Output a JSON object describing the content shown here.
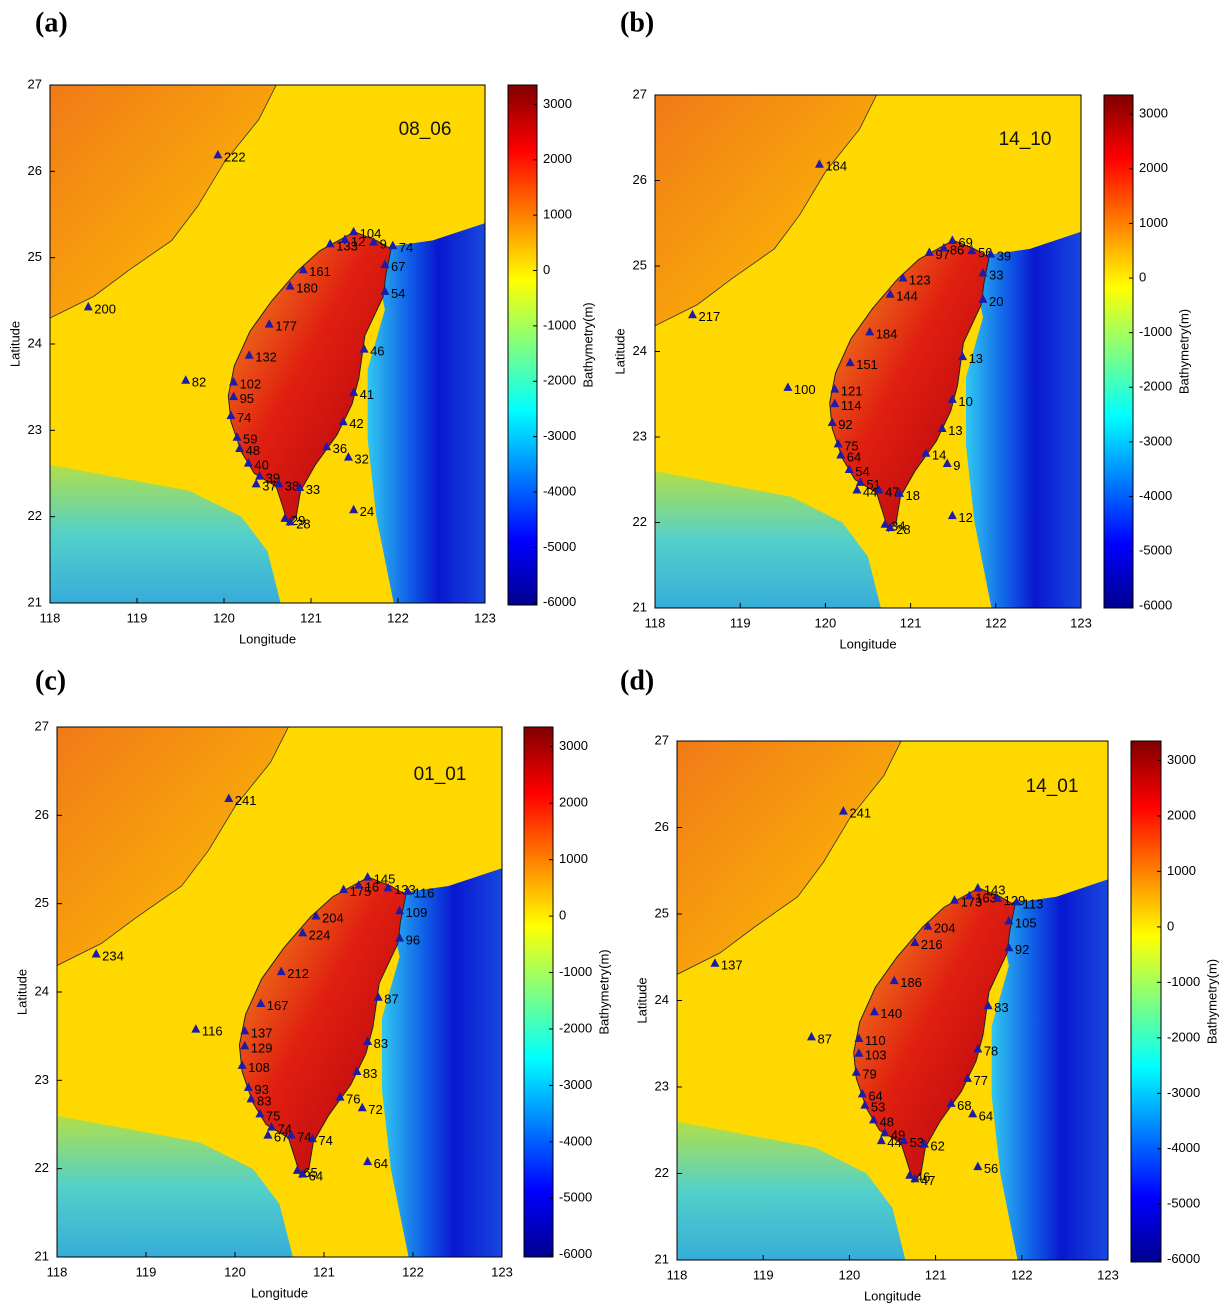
{
  "chart_data": [
    {
      "type": "scatter",
      "title": "(a)",
      "annotation": "08_06",
      "xlabel": "Longitude",
      "ylabel": "Latitude",
      "xlim": [
        118,
        123
      ],
      "ylim": [
        21,
        27
      ],
      "xticks": [
        118,
        119,
        120,
        121,
        122,
        123
      ],
      "yticks": [
        21,
        22,
        23,
        24,
        25,
        26,
        27
      ],
      "x": [
        119.93,
        118.44,
        119.56,
        121.49,
        121.22,
        121.39,
        121.72,
        121.94,
        121.85,
        120.91,
        120.76,
        121.85,
        120.52,
        121.61,
        120.29,
        120.11,
        120.11,
        121.49,
        120.08,
        121.37,
        120.15,
        120.18,
        121.18,
        121.43,
        120.28,
        120.41,
        120.37,
        120.63,
        120.87,
        121.49,
        120.7,
        120.76
      ],
      "y": [
        26.19,
        24.43,
        23.58,
        25.3,
        25.16,
        25.21,
        25.18,
        25.14,
        24.92,
        24.86,
        24.67,
        24.61,
        24.23,
        23.94,
        23.87,
        23.56,
        23.39,
        23.44,
        23.17,
        23.1,
        22.92,
        22.79,
        22.81,
        22.69,
        22.62,
        22.47,
        22.38,
        22.38,
        22.34,
        22.08,
        21.98,
        21.94
      ],
      "values": [
        222,
        200,
        82,
        104,
        133,
        12,
        9,
        74,
        67,
        161,
        180,
        54,
        177,
        46,
        132,
        102,
        95,
        41,
        74,
        42,
        59,
        48,
        36,
        32,
        40,
        39,
        37,
        38,
        33,
        24,
        29,
        28
      ],
      "color": "#1c1ca8",
      "colorbar": {
        "label": "Bathymetry(m)",
        "lim": [
          -6040,
          3350
        ],
        "ticks": [
          3000,
          2000,
          1000,
          0,
          -1000,
          -2000,
          -3000,
          -4000,
          -5000,
          -6000
        ]
      }
    },
    {
      "type": "scatter",
      "title": "(b)",
      "annotation": "14_10",
      "xlabel": "Longitude",
      "ylabel": "Latitude",
      "xlim": [
        118,
        123
      ],
      "ylim": [
        21,
        27
      ],
      "xticks": [
        118,
        119,
        120,
        121,
        122,
        123
      ],
      "yticks": [
        21,
        22,
        23,
        24,
        25,
        26,
        27
      ],
      "x": [
        119.93,
        118.44,
        119.56,
        121.49,
        121.22,
        121.39,
        121.72,
        121.94,
        121.85,
        120.91,
        120.76,
        121.85,
        120.52,
        121.61,
        120.29,
        120.11,
        120.11,
        121.49,
        120.08,
        121.37,
        120.15,
        120.18,
        121.18,
        121.43,
        120.28,
        120.41,
        120.37,
        120.63,
        120.87,
        121.49,
        120.7,
        120.76
      ],
      "y": [
        26.19,
        24.43,
        23.58,
        25.3,
        25.16,
        25.21,
        25.18,
        25.14,
        24.92,
        24.86,
        24.67,
        24.61,
        24.23,
        23.94,
        23.87,
        23.56,
        23.39,
        23.44,
        23.17,
        23.1,
        22.92,
        22.79,
        22.81,
        22.69,
        22.62,
        22.47,
        22.38,
        22.38,
        22.34,
        22.08,
        21.98,
        21.94
      ],
      "values": [
        184,
        217,
        100,
        69,
        97,
        86,
        56,
        39,
        33,
        123,
        144,
        20,
        184,
        13,
        151,
        121,
        114,
        10,
        92,
        13,
        75,
        64,
        14,
        9,
        54,
        51,
        44,
        47,
        18,
        12,
        34,
        28
      ],
      "color": "#1c1ca8",
      "colorbar": {
        "label": "Bathymetry(m)",
        "lim": [
          -6040,
          3350
        ],
        "ticks": [
          3000,
          2000,
          1000,
          0,
          -1000,
          -2000,
          -3000,
          -4000,
          -5000,
          -6000
        ]
      }
    },
    {
      "type": "scatter",
      "title": "(c)",
      "annotation": "01_01",
      "xlabel": "Longitude",
      "ylabel": "Latitude",
      "xlim": [
        118,
        123
      ],
      "ylim": [
        21,
        27
      ],
      "xticks": [
        118,
        119,
        120,
        121,
        122,
        123
      ],
      "yticks": [
        21,
        22,
        23,
        24,
        25,
        26,
        27
      ],
      "x": [
        119.93,
        118.44,
        119.56,
        121.49,
        121.22,
        121.39,
        121.72,
        121.94,
        121.85,
        120.91,
        120.76,
        121.85,
        120.52,
        121.61,
        120.29,
        120.11,
        120.11,
        121.49,
        120.08,
        121.37,
        120.15,
        120.18,
        121.18,
        121.43,
        120.28,
        120.41,
        120.37,
        120.63,
        120.87,
        121.49,
        120.7,
        120.76
      ],
      "y": [
        26.19,
        24.43,
        23.58,
        25.3,
        25.16,
        25.21,
        25.18,
        25.14,
        24.92,
        24.86,
        24.67,
        24.61,
        24.23,
        23.94,
        23.87,
        23.56,
        23.39,
        23.44,
        23.17,
        23.1,
        22.92,
        22.79,
        22.81,
        22.69,
        22.62,
        22.47,
        22.38,
        22.38,
        22.34,
        22.08,
        21.98,
        21.94
      ],
      "values": [
        241,
        234,
        116,
        145,
        175,
        16,
        133,
        116,
        109,
        204,
        224,
        96,
        212,
        87,
        167,
        137,
        129,
        83,
        108,
        83,
        93,
        83,
        76,
        72,
        75,
        74,
        67,
        74,
        74,
        64,
        65,
        64
      ],
      "color": "#1c1ca8",
      "colorbar": {
        "label": "Bathymetry(m)",
        "lim": [
          -6040,
          3350
        ],
        "ticks": [
          3000,
          2000,
          1000,
          0,
          -1000,
          -2000,
          -3000,
          -4000,
          -5000,
          -6000
        ]
      }
    },
    {
      "type": "scatter",
      "title": "(d)",
      "annotation": "14_01",
      "xlabel": "Longitude",
      "ylabel": "Latitude",
      "xlim": [
        118,
        123
      ],
      "ylim": [
        21,
        27
      ],
      "xticks": [
        118,
        119,
        120,
        121,
        122,
        123
      ],
      "yticks": [
        21,
        22,
        23,
        24,
        25,
        26,
        27
      ],
      "x": [
        119.93,
        118.44,
        119.56,
        121.49,
        121.22,
        121.39,
        121.72,
        121.94,
        121.85,
        120.91,
        120.76,
        121.85,
        120.52,
        121.61,
        120.29,
        120.11,
        120.11,
        121.49,
        120.08,
        121.37,
        120.15,
        120.18,
        121.18,
        121.43,
        120.28,
        120.41,
        120.37,
        120.63,
        120.87,
        121.49,
        120.7,
        120.76
      ],
      "y": [
        26.19,
        24.43,
        23.58,
        25.3,
        25.16,
        25.21,
        25.18,
        25.14,
        24.92,
        24.86,
        24.67,
        24.61,
        24.23,
        23.94,
        23.87,
        23.56,
        23.39,
        23.44,
        23.17,
        23.1,
        22.92,
        22.79,
        22.81,
        22.69,
        22.62,
        22.47,
        22.38,
        22.38,
        22.34,
        22.08,
        21.98,
        21.94
      ],
      "values": [
        241,
        137,
        87,
        143,
        173,
        163,
        129,
        113,
        105,
        204,
        216,
        92,
        186,
        83,
        140,
        110,
        103,
        78,
        79,
        77,
        64,
        53,
        68,
        64,
        48,
        49,
        44,
        53,
        62,
        56,
        46,
        47
      ],
      "color": "#1c1ca8",
      "colorbar": {
        "label": "Bathymetry(m)",
        "lim": [
          -6040,
          3350
        ],
        "ticks": [
          3000,
          2000,
          1000,
          0,
          -1000,
          -2000,
          -3000,
          -4000,
          -5000,
          -6000
        ]
      }
    }
  ]
}
